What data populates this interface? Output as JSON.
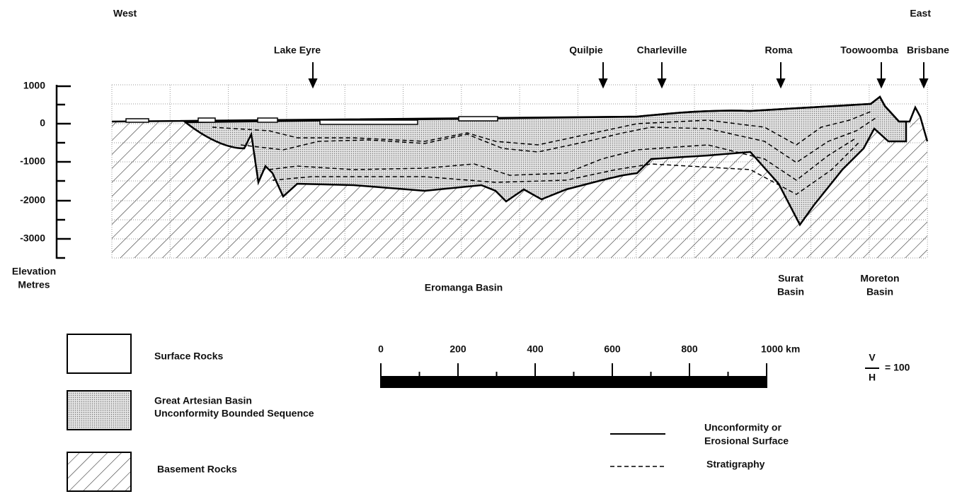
{
  "header": {
    "west": "West",
    "east": "East"
  },
  "locations": [
    "Lake Eyre",
    "Quilpie",
    "Charleville",
    "Roma",
    "Toowoomba",
    "Brisbane"
  ],
  "elevation_axis": {
    "ticks": [
      "1000",
      "0",
      "-1000",
      "-2000",
      "-3000"
    ],
    "label": [
      "Elevation",
      "Metres"
    ]
  },
  "basins": [
    {
      "name": [
        "Eromanga Basin"
      ]
    },
    {
      "name": [
        "Surat",
        "Basin"
      ]
    },
    {
      "name": [
        "Moreton",
        "Basin"
      ]
    }
  ],
  "legend": {
    "fills": [
      {
        "label": [
          "Surface Rocks"
        ]
      },
      {
        "label": [
          "Great Artesian Basin",
          "Unconformity Bounded Sequence"
        ]
      },
      {
        "label": [
          "Basement Rocks"
        ]
      }
    ],
    "lines": [
      {
        "label": [
          "Unconformity or",
          "Erosional Surface"
        ]
      },
      {
        "label": [
          "Stratigraphy"
        ]
      }
    ]
  },
  "scale_bar": {
    "ticks": [
      "0",
      "200",
      "400",
      "600",
      "800",
      "1000 km"
    ]
  },
  "ratio": {
    "numerator": "V",
    "denominator": "H",
    "value": "= 100"
  }
}
